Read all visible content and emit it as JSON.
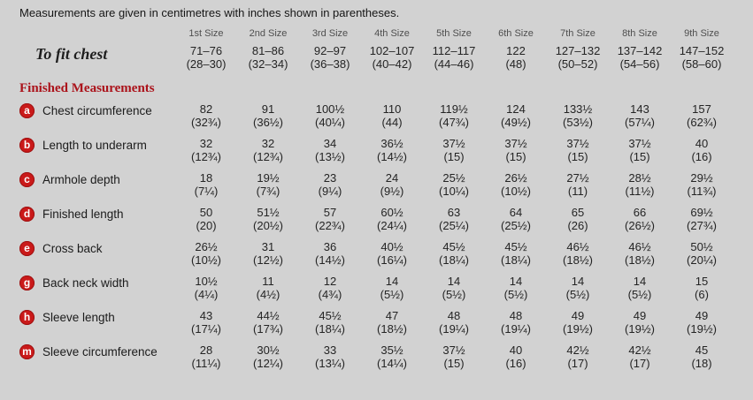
{
  "page": {
    "intro": "Measurements are given in centimetres with inches shown in parentheses."
  },
  "colors": {
    "background": "#d2d2d2",
    "accent_red": "#ab131b",
    "badge_red": "#ca1a1a",
    "text": "#1e1e1e",
    "header_gray": "#4f4f4f"
  },
  "table": {
    "size_headers": [
      "1st Size",
      "2nd Size",
      "3rd Size",
      "4th Size",
      "5th Size",
      "6th Size",
      "7th Size",
      "8th Size",
      "9th Size"
    ],
    "to_fit": {
      "label": "To fit chest",
      "values": [
        {
          "cm": "71–76",
          "in": "(28–30)"
        },
        {
          "cm": "81–86",
          "in": "(32–34)"
        },
        {
          "cm": "92–97",
          "in": "(36–38)"
        },
        {
          "cm": "102–107",
          "in": "(40–42)"
        },
        {
          "cm": "112–117",
          "in": "(44–46)"
        },
        {
          "cm": "122",
          "in": "(48)"
        },
        {
          "cm": "127–132",
          "in": "(50–52)"
        },
        {
          "cm": "137–142",
          "in": "(54–56)"
        },
        {
          "cm": "147–152",
          "in": "(58–60)"
        }
      ]
    },
    "section_title": "Finished Measurements",
    "rows": [
      {
        "badge": "a",
        "label": "Chest circumference",
        "values": [
          {
            "cm": "82",
            "in": "(32¾)"
          },
          {
            "cm": "91",
            "in": "(36½)"
          },
          {
            "cm": "100½",
            "in": "(40¼)"
          },
          {
            "cm": "110",
            "in": "(44)"
          },
          {
            "cm": "119½",
            "in": "(47¾)"
          },
          {
            "cm": "124",
            "in": "(49½)"
          },
          {
            "cm": "133½",
            "in": "(53½)"
          },
          {
            "cm": "143",
            "in": "(57¼)"
          },
          {
            "cm": "157",
            "in": "(62¾)"
          }
        ]
      },
      {
        "badge": "b",
        "label": "Length to underarm",
        "values": [
          {
            "cm": "32",
            "in": "(12¾)"
          },
          {
            "cm": "32",
            "in": "(12¾)"
          },
          {
            "cm": "34",
            "in": "(13½)"
          },
          {
            "cm": "36½",
            "in": "(14½)"
          },
          {
            "cm": "37½",
            "in": "(15)"
          },
          {
            "cm": "37½",
            "in": "(15)"
          },
          {
            "cm": "37½",
            "in": "(15)"
          },
          {
            "cm": "37½",
            "in": "(15)"
          },
          {
            "cm": "40",
            "in": "(16)"
          }
        ]
      },
      {
        "badge": "c",
        "label": "Armhole depth",
        "values": [
          {
            "cm": "18",
            "in": "(7¼)"
          },
          {
            "cm": "19½",
            "in": "(7¾)"
          },
          {
            "cm": "23",
            "in": "(9¼)"
          },
          {
            "cm": "24",
            "in": "(9½)"
          },
          {
            "cm": "25½",
            "in": "(10¼)"
          },
          {
            "cm": "26½",
            "in": "(10½)"
          },
          {
            "cm": "27½",
            "in": "(11)"
          },
          {
            "cm": "28½",
            "in": "(11½)"
          },
          {
            "cm": "29½",
            "in": "(11¾)"
          }
        ]
      },
      {
        "badge": "d",
        "label": "Finished length",
        "values": [
          {
            "cm": "50",
            "in": "(20)"
          },
          {
            "cm": "51½",
            "in": "(20½)"
          },
          {
            "cm": "57",
            "in": "(22¾)"
          },
          {
            "cm": "60½",
            "in": "(24¼)"
          },
          {
            "cm": "63",
            "in": "(25¼)"
          },
          {
            "cm": "64",
            "in": "(25½)"
          },
          {
            "cm": "65",
            "in": "(26)"
          },
          {
            "cm": "66",
            "in": "(26½)"
          },
          {
            "cm": "69½",
            "in": "(27¾)"
          }
        ]
      },
      {
        "badge": "e",
        "label": "Cross back",
        "values": [
          {
            "cm": "26½",
            "in": "(10½)"
          },
          {
            "cm": "31",
            "in": "(12½)"
          },
          {
            "cm": "36",
            "in": "(14½)"
          },
          {
            "cm": "40½",
            "in": "(16¼)"
          },
          {
            "cm": "45½",
            "in": "(18¼)"
          },
          {
            "cm": "45½",
            "in": "(18¼)"
          },
          {
            "cm": "46½",
            "in": "(18½)"
          },
          {
            "cm": "46½",
            "in": "(18½)"
          },
          {
            "cm": "50½",
            "in": "(20¼)"
          }
        ]
      },
      {
        "badge": "g",
        "label": "Back neck width",
        "values": [
          {
            "cm": "10½",
            "in": "(4¼)"
          },
          {
            "cm": "11",
            "in": "(4½)"
          },
          {
            "cm": "12",
            "in": "(4¾)"
          },
          {
            "cm": "14",
            "in": "(5½)"
          },
          {
            "cm": "14",
            "in": "(5½)"
          },
          {
            "cm": "14",
            "in": "(5½)"
          },
          {
            "cm": "14",
            "in": "(5½)"
          },
          {
            "cm": "14",
            "in": "(5½)"
          },
          {
            "cm": "15",
            "in": "(6)"
          }
        ]
      },
      {
        "badge": "h",
        "label": "Sleeve length",
        "values": [
          {
            "cm": "43",
            "in": "(17¼)"
          },
          {
            "cm": "44½",
            "in": "(17¾)"
          },
          {
            "cm": "45½",
            "in": "(18¼)"
          },
          {
            "cm": "47",
            "in": "(18½)"
          },
          {
            "cm": "48",
            "in": "(19¼)"
          },
          {
            "cm": "48",
            "in": "(19¼)"
          },
          {
            "cm": "49",
            "in": "(19½)"
          },
          {
            "cm": "49",
            "in": "(19½)"
          },
          {
            "cm": "49",
            "in": "(19½)"
          }
        ]
      },
      {
        "badge": "m",
        "label": "Sleeve circumference",
        "values": [
          {
            "cm": "28",
            "in": "(11¼)"
          },
          {
            "cm": "30½",
            "in": "(12¼)"
          },
          {
            "cm": "33",
            "in": "(13¼)"
          },
          {
            "cm": "35½",
            "in": "(14¼)"
          },
          {
            "cm": "37½",
            "in": "(15)"
          },
          {
            "cm": "40",
            "in": "(16)"
          },
          {
            "cm": "42½",
            "in": "(17)"
          },
          {
            "cm": "42½",
            "in": "(17)"
          },
          {
            "cm": "45",
            "in": "(18)"
          }
        ]
      }
    ]
  }
}
